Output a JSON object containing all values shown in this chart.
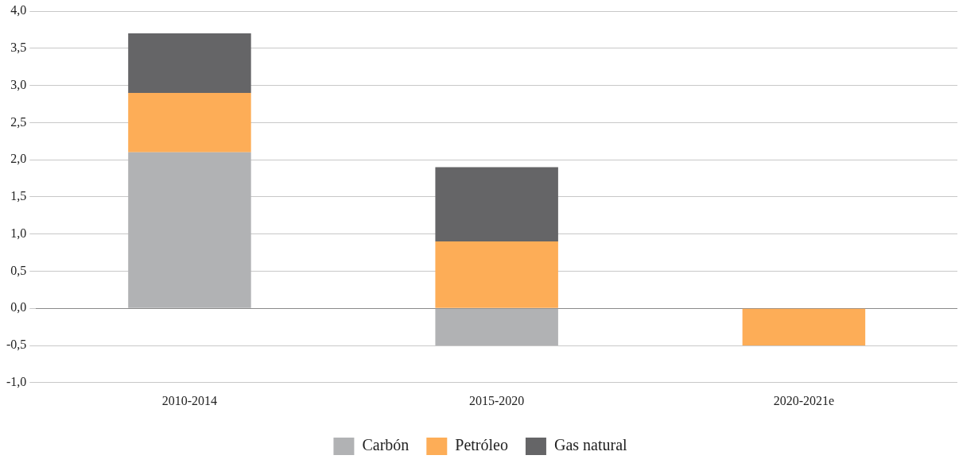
{
  "chart_data": {
    "type": "bar",
    "stacked": true,
    "categories": [
      "2010-2014",
      "2015-2020",
      "2020-2021e"
    ],
    "series": [
      {
        "name": "Carbón",
        "color": "#b1b2b4",
        "values": [
          2.1,
          -0.5,
          null
        ]
      },
      {
        "name": "Petróleo",
        "color": "#fdad57",
        "values": [
          0.8,
          0.9,
          -0.5
        ]
      },
      {
        "name": "Gas natural",
        "color": "#656567",
        "values": [
          0.8,
          1.0,
          null
        ]
      }
    ],
    "ylim": [
      -1,
      4
    ],
    "yticks": [
      {
        "value": -1,
        "label": "-1,0"
      },
      {
        "value": -0.5,
        "label": "-0,5"
      },
      {
        "value": 0,
        "label": "0,0"
      },
      {
        "value": 0.5,
        "label": "0,5"
      },
      {
        "value": 1,
        "label": "1,0"
      },
      {
        "value": 1.5,
        "label": "1,5"
      },
      {
        "value": 2,
        "label": "2,0"
      },
      {
        "value": 2.5,
        "label": "2,5"
      },
      {
        "value": 3,
        "label": "3,0"
      },
      {
        "value": 3.5,
        "label": "3,5"
      },
      {
        "value": 4,
        "label": "4,0"
      }
    ],
    "grid": "y",
    "legend": "bottom"
  }
}
